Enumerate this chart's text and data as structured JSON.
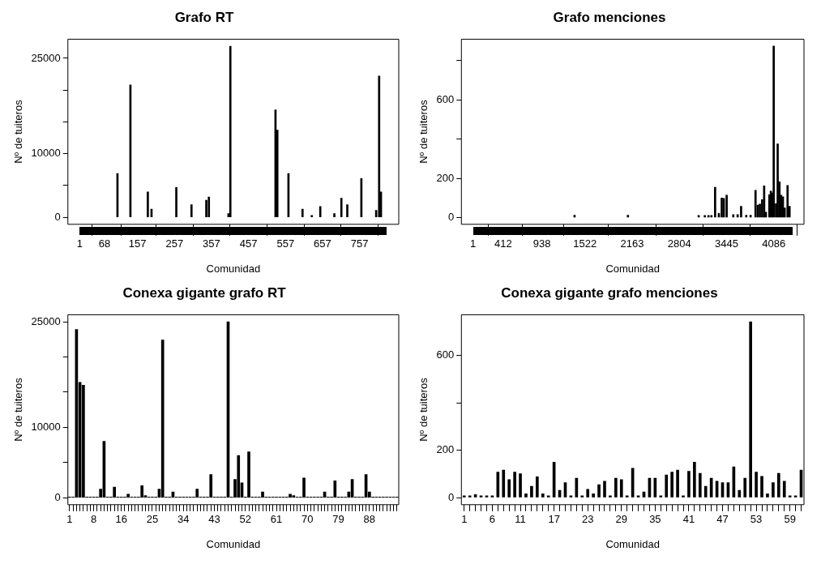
{
  "chart_data": [
    {
      "type": "bar",
      "title": "Grafo RT",
      "xlabel": "Comunidad",
      "ylabel": "Nº de tuiteros",
      "color": "#000000",
      "x": [
        103,
        138,
        185,
        195,
        262,
        303,
        343,
        350,
        403,
        408,
        530,
        535,
        565,
        603,
        628,
        651,
        689,
        708,
        724,
        762,
        802,
        810,
        815
      ],
      "values": [
        6900,
        20800,
        4000,
        1300,
        4700,
        2000,
        2700,
        3200,
        600,
        26900,
        16900,
        13700,
        6900,
        1300,
        300,
        1700,
        600,
        3000,
        2000,
        6100,
        1100,
        22200,
        4000
      ],
      "xlim": [
        -31,
        863
      ],
      "xticks": [
        1,
        68,
        157,
        257,
        357,
        457,
        557,
        657,
        757
      ],
      "ylim": [
        -1100,
        28000
      ],
      "yticks": [
        0,
        {
          "value": 5000,
          "label": null
        },
        10000,
        {
          "value": 15000,
          "label": null
        },
        {
          "value": 20000,
          "label": null
        },
        25000
      ]
    },
    {
      "type": "bar",
      "title": "Grafo menciones",
      "xlabel": "Comunidad",
      "ylabel": "Nº de tuiteros",
      "color": "#000000",
      "x": [
        1381,
        2106,
        3067,
        3150,
        3200,
        3240,
        3290,
        3341,
        3380,
        3408,
        3447,
        3537,
        3596,
        3643,
        3713,
        3772,
        3839,
        3870,
        3898,
        3929,
        3956,
        3980,
        4027,
        4047,
        4064,
        4086,
        4117,
        4140,
        4164,
        4187,
        4211,
        4235,
        4274,
        4301
      ],
      "values": [
        11,
        11,
        10,
        10,
        10,
        10,
        154,
        21,
        99,
        97,
        114,
        15,
        15,
        57,
        11,
        11,
        139,
        63,
        68,
        91,
        161,
        27,
        116,
        135,
        125,
        875,
        70,
        376,
        182,
        114,
        106,
        49,
        163,
        57
      ],
      "xlim": [
        -156,
        4497
      ],
      "xticks": [
        1,
        412,
        938,
        1522,
        2163,
        2804,
        3445,
        4086
      ],
      "ylim": [
        -35,
        910
      ],
      "yticks": [
        0,
        200,
        {
          "value": 400,
          "label": null
        },
        600,
        {
          "value": 800,
          "label": null
        }
      ]
    },
    {
      "type": "bar",
      "title": "Conexa gigante grafo RT",
      "xlabel": "Comunidad",
      "ylabel": "Nº de tuiteros",
      "color": "#000000",
      "categories": [
        "1",
        null,
        null,
        null,
        null,
        null,
        null,
        "8",
        null,
        null,
        null,
        null,
        null,
        null,
        null,
        "16",
        null,
        null,
        null,
        null,
        null,
        null,
        null,
        null,
        "25",
        null,
        null,
        null,
        null,
        null,
        null,
        null,
        null,
        "34",
        null,
        null,
        null,
        null,
        null,
        null,
        null,
        null,
        "43",
        null,
        null,
        null,
        null,
        null,
        null,
        null,
        null,
        "52",
        null,
        null,
        null,
        null,
        null,
        null,
        null,
        null,
        "61",
        null,
        null,
        null,
        null,
        null,
        null,
        null,
        null,
        "70",
        null,
        null,
        null,
        null,
        null,
        null,
        null,
        null,
        "79",
        null,
        null,
        null,
        null,
        null,
        null,
        null,
        null,
        "88",
        null,
        null,
        null,
        null,
        null,
        null,
        null,
        null
      ],
      "values": [
        100,
        100,
        23900,
        16400,
        16000,
        100,
        100,
        100,
        100,
        1200,
        8000,
        100,
        100,
        1500,
        100,
        100,
        100,
        500,
        100,
        100,
        100,
        1700,
        300,
        100,
        100,
        100,
        1200,
        22400,
        100,
        100,
        800,
        100,
        100,
        100,
        100,
        100,
        100,
        1200,
        100,
        100,
        100,
        3300,
        100,
        100,
        100,
        100,
        25000,
        100,
        2600,
        6000,
        2100,
        100,
        6500,
        100,
        100,
        100,
        800,
        100,
        100,
        100,
        100,
        100,
        100,
        100,
        500,
        300,
        100,
        100,
        2800,
        100,
        100,
        100,
        100,
        100,
        800,
        100,
        100,
        2400,
        100,
        100,
        100,
        800,
        2600,
        100,
        100,
        100,
        3300,
        800,
        100,
        100,
        100,
        100,
        100,
        100,
        100,
        100
      ],
      "ylim": [
        -1000,
        26000
      ],
      "yticks": [
        0,
        {
          "value": 5000,
          "label": null
        },
        10000,
        {
          "value": 15000,
          "label": null
        },
        {
          "value": 20000,
          "label": null
        },
        25000
      ]
    },
    {
      "type": "bar",
      "title": "Conexa gigante grafo menciones",
      "xlabel": "Comunidad",
      "ylabel": "Nº de tuiteros",
      "color": "#000000",
      "categories": [
        "1",
        null,
        null,
        null,
        null,
        "6",
        null,
        null,
        null,
        null,
        "11",
        null,
        null,
        null,
        null,
        null,
        "17",
        null,
        null,
        null,
        null,
        null,
        "23",
        null,
        null,
        null,
        null,
        null,
        "29",
        null,
        null,
        null,
        null,
        null,
        "35",
        null,
        null,
        null,
        null,
        null,
        "41",
        null,
        null,
        null,
        null,
        null,
        "47",
        null,
        null,
        null,
        null,
        null,
        "53",
        null,
        null,
        null,
        null,
        null,
        "59",
        null,
        null
      ],
      "values": [
        8,
        8,
        13,
        8,
        8,
        8,
        108,
        116,
        76,
        108,
        101,
        16,
        48,
        88,
        16,
        8,
        150,
        31,
        63,
        8,
        82,
        8,
        35,
        16,
        55,
        69,
        8,
        82,
        76,
        8,
        124,
        8,
        24,
        82,
        82,
        8,
        96,
        108,
        116,
        8,
        111,
        150,
        103,
        48,
        82,
        69,
        63,
        63,
        130,
        31,
        82,
        743,
        108,
        90,
        16,
        63,
        103,
        69,
        8,
        8,
        116
      ],
      "ylim": [
        -30,
        773
      ],
      "yticks": [
        0,
        200,
        {
          "value": 400,
          "label": null
        },
        600
      ]
    }
  ]
}
